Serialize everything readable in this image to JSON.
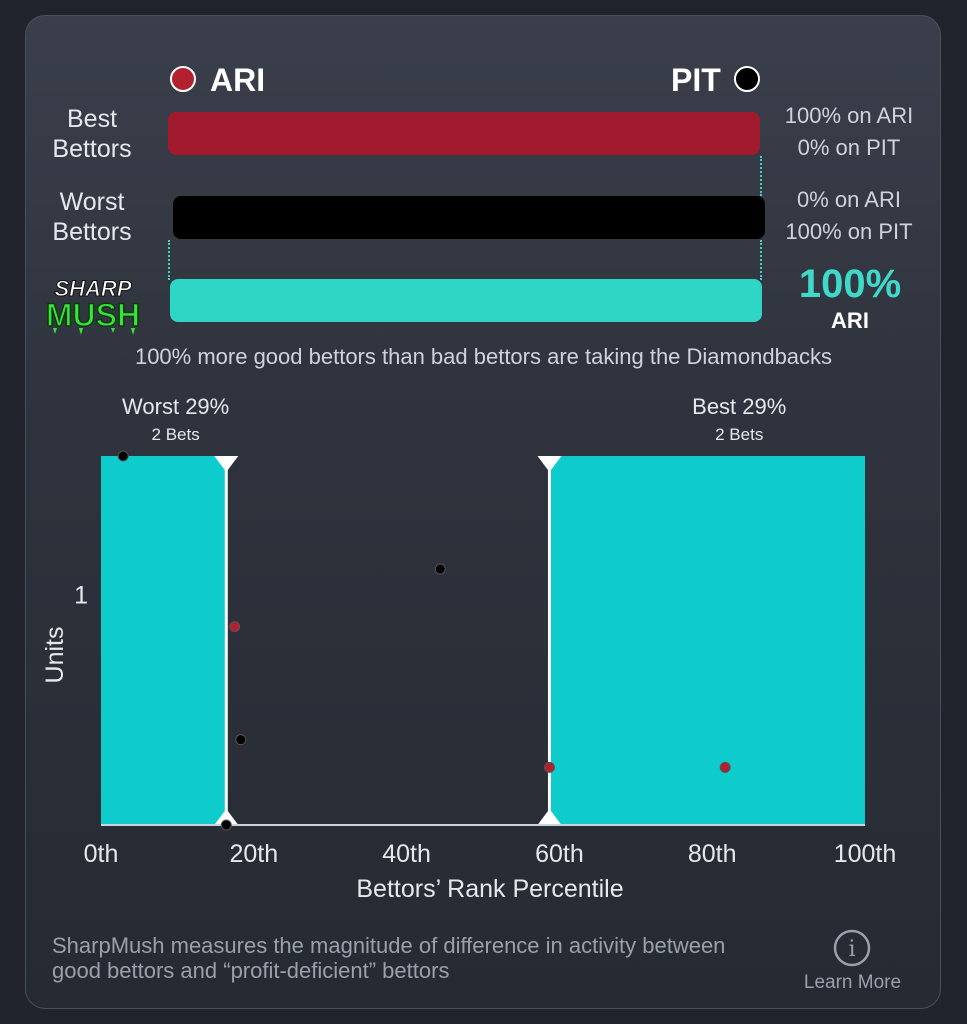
{
  "teams": {
    "left": {
      "abbr": "ARI",
      "color": "#b3202f"
    },
    "right": {
      "abbr": "PIT",
      "color": "#000000"
    }
  },
  "rows": {
    "best": {
      "label_line1": "Best",
      "label_line2": "Bettors",
      "pct_left_team": "100% on ARI",
      "pct_right_team": "0% on PIT",
      "share_left": 1.0,
      "color": "#a21a2e"
    },
    "worst": {
      "label_line1": "Worst",
      "label_line2": "Bettors",
      "pct_left_team": "0% on ARI",
      "pct_right_team": "100% on PIT",
      "share_left": 0.0,
      "color": "#000000"
    },
    "sharpmush": {
      "logo_line1": "SHARP",
      "logo_line2": "MUSH",
      "value": "100%",
      "team": "ARI",
      "share_left": 1.0,
      "color": "#2ed6c6"
    }
  },
  "summary": "100% more good bettors than bad bettors are taking the Diamondbacks",
  "chart_data": {
    "type": "scatter",
    "title": "",
    "xlabel": "Bettors’ Rank Percentile",
    "ylabel": "Units",
    "xlim": [
      0,
      100
    ],
    "ylim": [
      0,
      1.6
    ],
    "xticks": [
      "0th",
      "20th",
      "40th",
      "60th",
      "80th",
      "100th"
    ],
    "xtick_values": [
      0,
      20,
      40,
      60,
      80,
      100
    ],
    "yticks": [
      "1"
    ],
    "ytick_values": [
      1
    ],
    "regions": [
      {
        "name": "Worst 29%",
        "sublabel": "2 Bets",
        "x_from": 0,
        "x_to": 16.4,
        "color": "#0fcccc"
      },
      {
        "name": "Best 29%",
        "sublabel": "2 Bets",
        "x_from": 58.7,
        "x_to": 100,
        "color": "#0fcccc"
      }
    ],
    "series": [
      {
        "name": "ARI",
        "color": "#b3202f",
        "points": [
          {
            "x": 17.5,
            "y": 0.86
          },
          {
            "x": 58.7,
            "y": 0.25
          },
          {
            "x": 81.7,
            "y": 0.25
          }
        ]
      },
      {
        "name": "PIT",
        "color": "#000000",
        "points": [
          {
            "x": 2.9,
            "y": 1.6
          },
          {
            "x": 18.3,
            "y": 0.37
          },
          {
            "x": 44.4,
            "y": 1.11
          },
          {
            "x": 16.4,
            "y": 0.0
          }
        ]
      }
    ]
  },
  "footer": {
    "note": "SharpMush measures the magnitude of difference in activity between good bettors and “profit-deficient” bettors",
    "learn_more": "Learn More",
    "info_glyph": "i"
  }
}
